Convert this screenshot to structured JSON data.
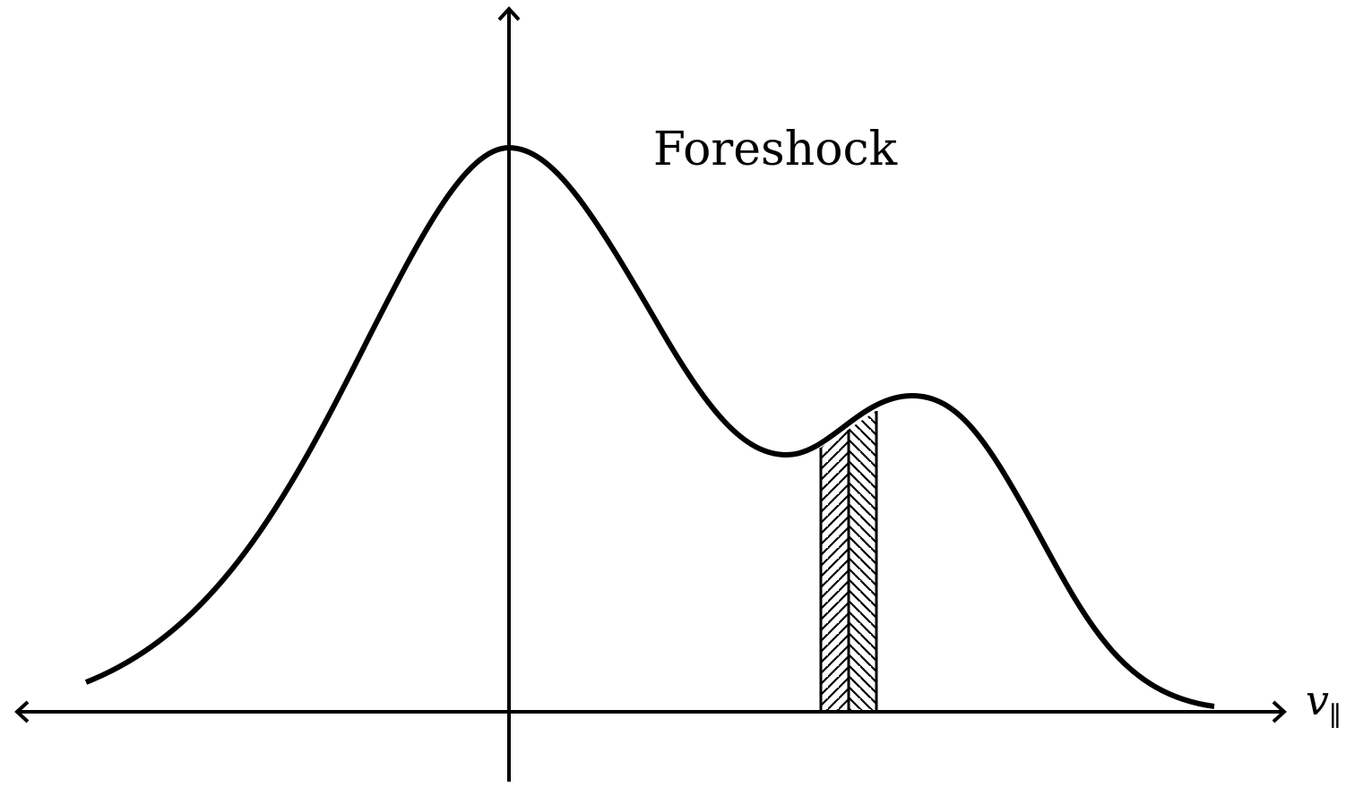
{
  "diagram": {
    "title": "Foreshock",
    "x_axis": {
      "symbol": "v",
      "subscript": "∥"
    },
    "band": {
      "pattern": "herringbone-hatch"
    },
    "colors": {
      "stroke": "#000000",
      "background": "#ffffff"
    }
  }
}
